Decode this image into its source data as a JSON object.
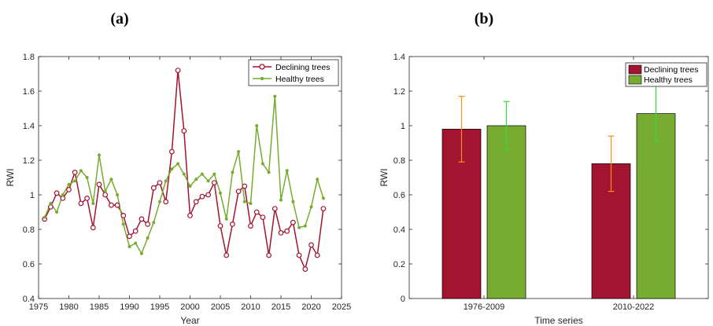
{
  "chart_data": [
    {
      "type": "line",
      "panel_label": "(a)",
      "xlabel": "Year",
      "ylabel": "RWI",
      "xlim": [
        1975,
        2025
      ],
      "ylim": [
        0.4,
        1.8
      ],
      "x_ticks": [
        "1975",
        "1980",
        "1985",
        "1990",
        "1995",
        "2000",
        "2005",
        "2010",
        "2015",
        "2020",
        "2025"
      ],
      "y_ticks": [
        "0.4",
        "0.6",
        "0.8",
        "1",
        "1.2",
        "1.4",
        "1.6",
        "1.8"
      ],
      "legend_position": "top-right",
      "x": [
        1976,
        1977,
        1978,
        1979,
        1980,
        1981,
        1982,
        1983,
        1984,
        1985,
        1986,
        1987,
        1988,
        1989,
        1990,
        1991,
        1992,
        1993,
        1994,
        1995,
        1996,
        1997,
        1998,
        1999,
        2000,
        2001,
        2002,
        2003,
        2004,
        2005,
        2006,
        2007,
        2008,
        2009,
        2010,
        2011,
        2012,
        2013,
        2014,
        2015,
        2016,
        2017,
        2018,
        2019,
        2020,
        2021,
        2022
      ],
      "series": [
        {
          "name": "Declining trees",
          "color": "#a2142f",
          "marker": "circle",
          "values": [
            0.86,
            0.93,
            1.01,
            0.98,
            1.03,
            1.13,
            0.95,
            0.98,
            0.81,
            1.06,
            1.0,
            0.94,
            0.94,
            0.88,
            0.76,
            0.79,
            0.86,
            0.83,
            1.04,
            1.07,
            0.96,
            1.25,
            1.72,
            1.37,
            0.88,
            0.96,
            0.99,
            1.0,
            1.07,
            0.82,
            0.65,
            0.83,
            1.02,
            1.05,
            0.82,
            0.9,
            0.87,
            0.65,
            0.92,
            0.78,
            0.79,
            0.84,
            0.65,
            0.57,
            0.71,
            0.65,
            0.92
          ]
        },
        {
          "name": "Healthy trees",
          "color": "#77ac30",
          "marker": "dot",
          "values": [
            0.87,
            0.95,
            0.9,
            1.0,
            1.06,
            1.08,
            1.14,
            1.1,
            0.95,
            1.23,
            1.02,
            1.09,
            1.0,
            0.83,
            0.7,
            0.72,
            0.66,
            0.75,
            0.84,
            0.96,
            1.08,
            1.15,
            1.18,
            1.12,
            1.05,
            1.09,
            1.12,
            1.08,
            1.12,
            1.01,
            0.86,
            1.13,
            1.25,
            0.96,
            0.95,
            1.4,
            1.18,
            1.13,
            1.57,
            0.97,
            1.14,
            0.96,
            0.81,
            0.82,
            0.93,
            1.09,
            0.98
          ]
        }
      ]
    },
    {
      "type": "bar",
      "panel_label": "(b)",
      "xlabel": "Time series",
      "ylabel": "RWI",
      "ylim": [
        0,
        1.4
      ],
      "y_ticks": [
        "0",
        "0.2",
        "0.4",
        "0.6",
        "0.8",
        "1",
        "1.2",
        "1.4"
      ],
      "categories": [
        "1976-2009",
        "2010-2022"
      ],
      "legend_position": "top-right",
      "series": [
        {
          "name": "Declining trees",
          "color": "#a2142f",
          "error_color": "#ff8c1a",
          "values": [
            0.98,
            0.78
          ],
          "error_low": [
            0.79,
            0.62
          ],
          "error_high": [
            1.17,
            0.94
          ]
        },
        {
          "name": "Healthy trees",
          "color": "#77ac30",
          "error_color": "#33dd33",
          "values": [
            1.0,
            1.07
          ],
          "error_low": [
            0.86,
            0.91
          ],
          "error_high": [
            1.14,
            1.23
          ]
        }
      ]
    }
  ]
}
